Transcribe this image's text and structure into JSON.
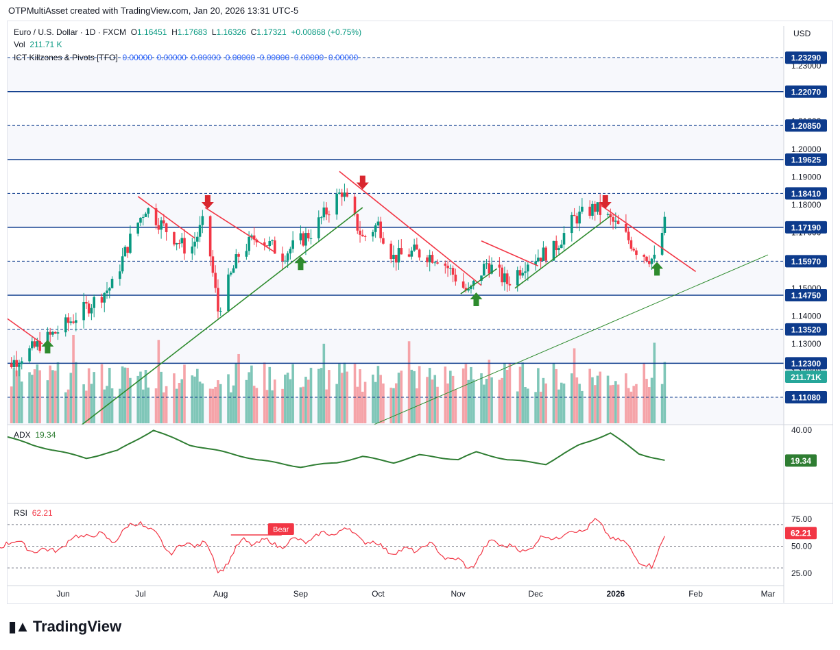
{
  "header": {
    "text": "OTPMultiAsset created with TradingView.com, Jan 20, 2026 13:31 UTC-5"
  },
  "legend": {
    "symbol": "Euro / U.S. Dollar · 1D · FXCM",
    "o_label": "O",
    "o": "1.16451",
    "h_label": "H",
    "h": "1.17683",
    "l_label": "L",
    "l": "1.16326",
    "c_label": "C",
    "c": "1.17321",
    "change": "+0.00868 (+0.75%)",
    "vol_label": "Vol",
    "vol": "211.71 K",
    "ict_label": "ICT Killzones & Pivots [TFO]",
    "ict_values": [
      "0.00000",
      "0.00000",
      "0.00000",
      "0.00000",
      "0.00000",
      "0.00000",
      "0.00000"
    ]
  },
  "currency": "USD",
  "logo_text": "TradingView",
  "colors": {
    "up": "#089981",
    "down": "#f23645",
    "level": "#0d3b8c",
    "trend_up": "#2e8b2e",
    "trend_down": "#f23645",
    "adx": "#2e7d32",
    "rsi": "#f23645"
  },
  "chart_data": [
    {
      "type": "candlestick",
      "ylim": [
        1.1,
        1.24
      ],
      "y_ticks": [
        "1.23000",
        "1.21000",
        "1.20000",
        "1.19000",
        "1.18000",
        "1.17000",
        "1.16000",
        "1.15000",
        "1.14000",
        "1.13000",
        "1.12000"
      ],
      "x_ticks": [
        "Jun",
        "Jul",
        "Aug",
        "Sep",
        "Oct",
        "Nov",
        "Dec",
        "2026",
        "Feb",
        "Mar"
      ],
      "levels": [
        {
          "value": 1.2329,
          "label": "1.23290",
          "style": "dashed"
        },
        {
          "value": 1.2207,
          "label": "1.22070",
          "style": "solid"
        },
        {
          "value": 1.2085,
          "label": "1.20850",
          "style": "dashed"
        },
        {
          "value": 1.19625,
          "label": "1.19625",
          "style": "solid"
        },
        {
          "value": 1.1841,
          "label": "1.18410",
          "style": "dashed"
        },
        {
          "value": 1.1719,
          "label": "1.17190",
          "style": "solid"
        },
        {
          "value": 1.1597,
          "label": "1.15970",
          "style": "dashed"
        },
        {
          "value": 1.1475,
          "label": "1.14750",
          "style": "solid"
        },
        {
          "value": 1.1352,
          "label": "1.13520",
          "style": "dashed"
        },
        {
          "value": 1.123,
          "label": "1.12300",
          "style": "solid"
        },
        {
          "value": 1.1108,
          "label": "1.11080",
          "style": "dashed"
        }
      ],
      "close_anchors": [
        {
          "date": "2025-05-10",
          "close": 1.122
        },
        {
          "date": "2025-05-20",
          "close": 1.128
        },
        {
          "date": "2025-06-01",
          "close": 1.136
        },
        {
          "date": "2025-06-10",
          "close": 1.143
        },
        {
          "date": "2025-06-20",
          "close": 1.151
        },
        {
          "date": "2025-06-28",
          "close": 1.17
        },
        {
          "date": "2025-07-03",
          "close": 1.179
        },
        {
          "date": "2025-07-12",
          "close": 1.17
        },
        {
          "date": "2025-07-20",
          "close": 1.163
        },
        {
          "date": "2025-07-26",
          "close": 1.175
        },
        {
          "date": "2025-07-31",
          "close": 1.142
        },
        {
          "date": "2025-08-08",
          "close": 1.162
        },
        {
          "date": "2025-08-15",
          "close": 1.169
        },
        {
          "date": "2025-08-25",
          "close": 1.162
        },
        {
          "date": "2025-09-05",
          "close": 1.17
        },
        {
          "date": "2025-09-17",
          "close": 1.185
        },
        {
          "date": "2025-09-25",
          "close": 1.168
        },
        {
          "date": "2025-10-01",
          "close": 1.173
        },
        {
          "date": "2025-10-07",
          "close": 1.161
        },
        {
          "date": "2025-10-15",
          "close": 1.163
        },
        {
          "date": "2025-10-25",
          "close": 1.161
        },
        {
          "date": "2025-11-05",
          "close": 1.148
        },
        {
          "date": "2025-11-12",
          "close": 1.159
        },
        {
          "date": "2025-11-20",
          "close": 1.152
        },
        {
          "date": "2025-11-28",
          "close": 1.16
        },
        {
          "date": "2025-12-08",
          "close": 1.164
        },
        {
          "date": "2025-12-16",
          "close": 1.175
        },
        {
          "date": "2025-12-24",
          "close": 1.179
        },
        {
          "date": "2026-01-02",
          "close": 1.172
        },
        {
          "date": "2026-01-09",
          "close": 1.164
        },
        {
          "date": "2026-01-16",
          "close": 1.16
        },
        {
          "date": "2026-01-20",
          "close": 1.1732
        }
      ],
      "trendlines": [
        {
          "color": "down",
          "from": [
            "2025-05-06",
            1.142
          ],
          "to": [
            "2025-05-24",
            1.13
          ]
        },
        {
          "color": "down",
          "from": [
            "2025-06-30",
            1.183
          ],
          "to": [
            "2025-07-22",
            1.168
          ]
        },
        {
          "color": "down",
          "from": [
            "2025-07-26",
            1.179
          ],
          "to": [
            "2025-08-22",
            1.163
          ]
        },
        {
          "color": "up",
          "from": [
            "2025-06-07",
            1.1
          ],
          "to": [
            "2025-09-25",
            1.179
          ]
        },
        {
          "color": "down",
          "from": [
            "2025-09-16",
            1.192
          ],
          "to": [
            "2025-11-10",
            1.151
          ]
        },
        {
          "color": "up",
          "from": [
            "2025-11-02",
            1.148
          ],
          "to": [
            "2025-11-16",
            1.157
          ]
        },
        {
          "color": "down",
          "from": [
            "2025-11-10",
            1.167
          ],
          "to": [
            "2025-12-02",
            1.158
          ]
        },
        {
          "color": "up",
          "from": [
            "2025-11-23",
            1.15
          ],
          "to": [
            "2025-12-30",
            1.176
          ]
        },
        {
          "color": "down",
          "from": [
            "2025-12-26",
            1.18
          ],
          "to": [
            "2026-02-01",
            1.156
          ]
        },
        {
          "color": "thin-up",
          "from": [
            "2025-09-27",
            1.1
          ],
          "to": [
            "2026-03-01",
            1.162
          ]
        }
      ],
      "arrows": [
        {
          "dir": "up",
          "date": "2025-05-26",
          "price": 1.129
        },
        {
          "dir": "down",
          "date": "2025-07-27",
          "price": 1.181
        },
        {
          "dir": "up",
          "date": "2025-09-01",
          "price": 1.159
        },
        {
          "dir": "down",
          "date": "2025-09-25",
          "price": 1.188
        },
        {
          "dir": "up",
          "date": "2025-11-08",
          "price": 1.146
        },
        {
          "dir": "down",
          "date": "2025-12-28",
          "price": 1.181
        },
        {
          "dir": "up",
          "date": "2026-01-17",
          "price": 1.157
        }
      ],
      "volume": {
        "last": "211.71K"
      }
    },
    {
      "type": "line",
      "name": "ADX",
      "last": "19.34",
      "y_ticks": [
        "40.00"
      ],
      "anchors": [
        {
          "date": "2025-04-25",
          "value": 44
        },
        {
          "date": "2025-05-20",
          "value": 30
        },
        {
          "date": "2025-06-10",
          "value": 21
        },
        {
          "date": "2025-06-22",
          "value": 26
        },
        {
          "date": "2025-07-06",
          "value": 40
        },
        {
          "date": "2025-07-20",
          "value": 30
        },
        {
          "date": "2025-07-31",
          "value": 26
        },
        {
          "date": "2025-08-15",
          "value": 20
        },
        {
          "date": "2025-09-01",
          "value": 15
        },
        {
          "date": "2025-09-15",
          "value": 18
        },
        {
          "date": "2025-09-25",
          "value": 22
        },
        {
          "date": "2025-10-07",
          "value": 18
        },
        {
          "date": "2025-10-17",
          "value": 23
        },
        {
          "date": "2025-11-01",
          "value": 20
        },
        {
          "date": "2025-11-08",
          "value": 25
        },
        {
          "date": "2025-11-20",
          "value": 20
        },
        {
          "date": "2025-12-05",
          "value": 17
        },
        {
          "date": "2025-12-18",
          "value": 30
        },
        {
          "date": "2025-12-30",
          "value": 38
        },
        {
          "date": "2026-01-10",
          "value": 24
        },
        {
          "date": "2026-01-20",
          "value": 19.34
        }
      ]
    },
    {
      "type": "line",
      "name": "RSI",
      "last": "62.21",
      "y_ticks": [
        "75.00",
        "50.00",
        "25.00"
      ],
      "bands": [
        70,
        50,
        30
      ],
      "annotation": "Bear",
      "anchors": [
        {
          "date": "2025-04-25",
          "value": 30
        },
        {
          "date": "2025-05-10",
          "value": 55
        },
        {
          "date": "2025-05-26",
          "value": 44
        },
        {
          "date": "2025-06-10",
          "value": 62
        },
        {
          "date": "2025-06-20",
          "value": 56
        },
        {
          "date": "2025-07-01",
          "value": 74
        },
        {
          "date": "2025-07-12",
          "value": 46
        },
        {
          "date": "2025-07-26",
          "value": 55
        },
        {
          "date": "2025-07-31",
          "value": 26
        },
        {
          "date": "2025-08-10",
          "value": 55
        },
        {
          "date": "2025-08-25",
          "value": 52
        },
        {
          "date": "2025-09-05",
          "value": 57
        },
        {
          "date": "2025-09-18",
          "value": 66
        },
        {
          "date": "2025-10-01",
          "value": 50
        },
        {
          "date": "2025-10-10",
          "value": 44
        },
        {
          "date": "2025-10-20",
          "value": 51
        },
        {
          "date": "2025-11-05",
          "value": 30
        },
        {
          "date": "2025-11-15",
          "value": 56
        },
        {
          "date": "2025-11-25",
          "value": 45
        },
        {
          "date": "2025-12-05",
          "value": 58
        },
        {
          "date": "2025-12-15",
          "value": 62
        },
        {
          "date": "2025-12-24",
          "value": 72
        },
        {
          "date": "2026-01-05",
          "value": 50
        },
        {
          "date": "2026-01-15",
          "value": 28
        },
        {
          "date": "2026-01-20",
          "value": 62.21
        }
      ]
    }
  ]
}
